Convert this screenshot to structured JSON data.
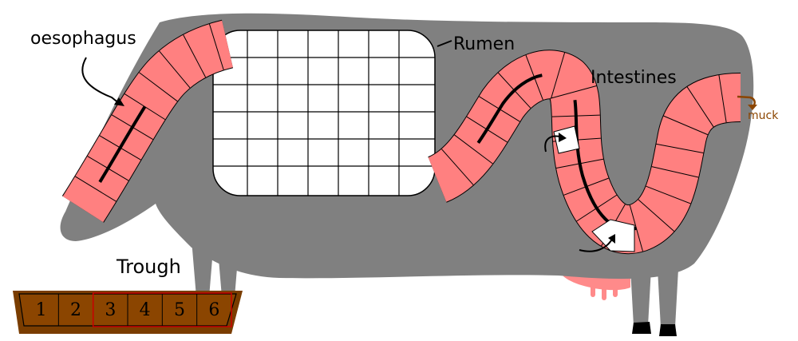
{
  "labels": {
    "oesophagus": "oesophagus",
    "rumen": "Rumen",
    "intestines": "Intestines",
    "muck": "muck",
    "trough": "Trough"
  },
  "trough": {
    "slots": [
      "1",
      "2",
      "3",
      "4",
      "5",
      "6"
    ],
    "highlighted_slots": [
      "3",
      "4",
      "5",
      "6"
    ]
  },
  "colors": {
    "cow_body": "#808080",
    "track_tile": "#ff8080",
    "rumen_grid": "#ffffff",
    "trough_wood": "#8b4500",
    "trough_highlight": "#cc0000",
    "muck": "#8b4500",
    "udder": "#ff8a8a",
    "hoof": "#000000"
  },
  "icons": [
    "oesophagus-arrow-icon",
    "rumen-pointer-icon",
    "shortcut-arrow-icon",
    "muck-arrow-icon"
  ]
}
